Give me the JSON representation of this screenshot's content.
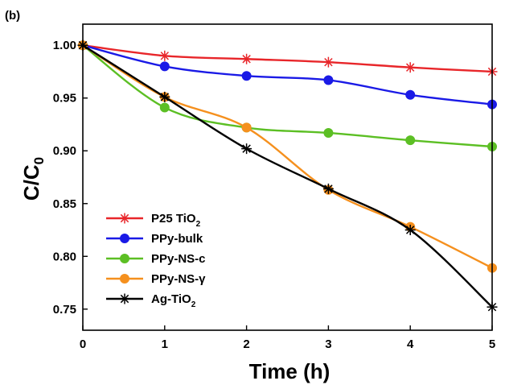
{
  "panel_label": "(b)",
  "chart_data": {
    "type": "line",
    "xlabel": "Time (h)",
    "ylabel": {
      "main": "C/C",
      "sub": "0"
    },
    "xlim": [
      0,
      5
    ],
    "ylim": [
      0.73,
      1.02
    ],
    "x_ticks": [
      "0",
      "1",
      "2",
      "3",
      "4",
      "5"
    ],
    "y_ticks": [
      "0.75",
      "0.80",
      "0.85",
      "0.90",
      "0.95",
      "1.00"
    ],
    "grid": false,
    "legend_position": "bottom-left",
    "x": [
      0,
      1,
      2,
      3,
      4,
      5
    ],
    "series": [
      {
        "name": "P25 TiO",
        "name_sub": "2",
        "color": "#e8262a",
        "marker": "asterisk",
        "values": [
          1.0,
          0.99,
          0.987,
          0.984,
          0.979,
          0.975
        ]
      },
      {
        "name": "PPy-bulk",
        "name_sub": "",
        "color": "#1a1ae6",
        "marker": "circle",
        "values": [
          1.0,
          0.98,
          0.971,
          0.967,
          0.953,
          0.944
        ]
      },
      {
        "name": "PPy-NS-c",
        "name_sub": "",
        "color": "#5cbf24",
        "marker": "circle",
        "values": [
          1.0,
          0.941,
          0.922,
          0.917,
          0.91,
          0.904
        ]
      },
      {
        "name": "PPy-NS-γ",
        "name_sub": "",
        "color": "#f5901e",
        "marker": "circle",
        "values": [
          1.0,
          0.951,
          0.922,
          0.863,
          0.828,
          0.789
        ]
      },
      {
        "name": "Ag-TiO",
        "name_sub": "2",
        "color": "#000000",
        "marker": "asterisk",
        "values": [
          1.0,
          0.951,
          0.902,
          0.864,
          0.825,
          0.752
        ]
      }
    ]
  }
}
